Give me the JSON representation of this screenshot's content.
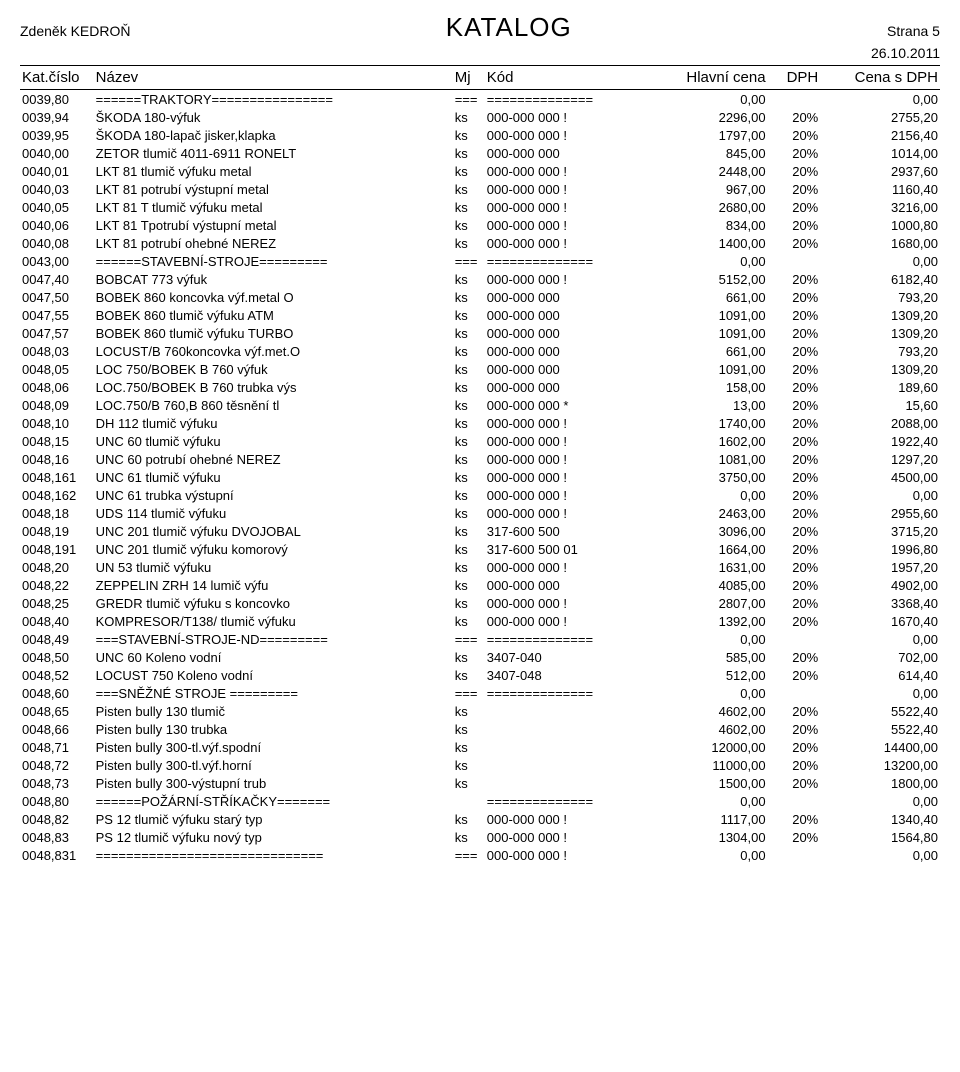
{
  "colors": {
    "text": "#000000",
    "background": "#ffffff",
    "rule": "#000000"
  },
  "fontsize": {
    "body": 13,
    "header": 15,
    "title": 26,
    "meta": 14
  },
  "meta": {
    "author": "Zdeněk KEDROŇ",
    "title": "KATALOG",
    "page": "Strana 5",
    "date": "26.10.2011"
  },
  "columns": {
    "kat": "Kat.číslo",
    "naz": "Název",
    "mj": "Mj",
    "kod": "Kód",
    "hc": "Hlavní cena",
    "dph": "DPH",
    "cdp": "Cena s DPH"
  },
  "rows": [
    {
      "kat": "0039,80",
      "naz": "======TRAKTORY================",
      "mj": "===",
      "kod": "==============",
      "hc": "0,00",
      "dph": "",
      "cdp": "0,00"
    },
    {
      "kat": "0039,94",
      "naz": "ŠKODA 180-výfuk",
      "mj": "ks",
      "kod": "000-000 000 !",
      "hc": "2296,00",
      "dph": "20%",
      "cdp": "2755,20"
    },
    {
      "kat": "0039,95",
      "naz": "ŠKODA 180-lapač jisker,klapka",
      "mj": "ks",
      "kod": "000-000 000 !",
      "hc": "1797,00",
      "dph": "20%",
      "cdp": "2156,40"
    },
    {
      "kat": "0040,00",
      "naz": "ZETOR tlumič 4011-6911  RONELT",
      "mj": "ks",
      "kod": "000-000 000",
      "hc": "845,00",
      "dph": "20%",
      "cdp": "1014,00"
    },
    {
      "kat": "0040,01",
      "naz": "LKT 81 tlumič výfuku metal",
      "mj": "ks",
      "kod": "000-000 000 !",
      "hc": "2448,00",
      "dph": "20%",
      "cdp": "2937,60"
    },
    {
      "kat": "0040,03",
      "naz": "LKT 81 potrubí výstupní metal",
      "mj": "ks",
      "kod": "000-000 000 !",
      "hc": "967,00",
      "dph": "20%",
      "cdp": "1160,40"
    },
    {
      "kat": "0040,05",
      "naz": "LKT 81 T tlumič výfuku metal",
      "mj": "ks",
      "kod": "000-000 000 !",
      "hc": "2680,00",
      "dph": "20%",
      "cdp": "3216,00"
    },
    {
      "kat": "0040,06",
      "naz": "LKT 81 Tpotrubí výstupní metal",
      "mj": "ks",
      "kod": "000-000 000 !",
      "hc": "834,00",
      "dph": "20%",
      "cdp": "1000,80"
    },
    {
      "kat": "0040,08",
      "naz": "LKT 81 potrubí ohebné   NEREZ",
      "mj": "ks",
      "kod": "000-000 000 !",
      "hc": "1400,00",
      "dph": "20%",
      "cdp": "1680,00"
    },
    {
      "kat": "0043,00",
      "naz": "======STAVEBNÍ-STROJE=========",
      "mj": "===",
      "kod": "==============",
      "hc": "0,00",
      "dph": "",
      "cdp": "0,00"
    },
    {
      "kat": "0047,40",
      "naz": "BOBCAT 773 výfuk",
      "mj": "ks",
      "kod": "000-000 000 !",
      "hc": "5152,00",
      "dph": "20%",
      "cdp": "6182,40"
    },
    {
      "kat": "0047,50",
      "naz": "BOBEK 860 koncovka výf.metal O",
      "mj": "ks",
      "kod": "000-000 000",
      "hc": "661,00",
      "dph": "20%",
      "cdp": "793,20"
    },
    {
      "kat": "0047,55",
      "naz": "BOBEK 860 tlumič výfuku    ATM",
      "mj": "ks",
      "kod": "000-000 000",
      "hc": "1091,00",
      "dph": "20%",
      "cdp": "1309,20"
    },
    {
      "kat": "0047,57",
      "naz": "BOBEK 860 tlumič výfuku  TURBO",
      "mj": "ks",
      "kod": "000-000 000",
      "hc": "1091,00",
      "dph": "20%",
      "cdp": "1309,20"
    },
    {
      "kat": "0048,03",
      "naz": "LOCUST/B 760koncovka výf.met.O",
      "mj": "ks",
      "kod": "000-000 000",
      "hc": "661,00",
      "dph": "20%",
      "cdp": "793,20"
    },
    {
      "kat": "0048,05",
      "naz": "LOC 750/BOBEK B 760 výfuk",
      "mj": "ks",
      "kod": "000-000 000",
      "hc": "1091,00",
      "dph": "20%",
      "cdp": "1309,20"
    },
    {
      "kat": "0048,06",
      "naz": "LOC.750/BOBEK B 760 trubka výs",
      "mj": "ks",
      "kod": "000-000 000",
      "hc": "158,00",
      "dph": "20%",
      "cdp": "189,60"
    },
    {
      "kat": "0048,09",
      "naz": "LOC.750/B 760,B 860 těsnění tl",
      "mj": "ks",
      "kod": "000-000 000 *",
      "hc": "13,00",
      "dph": "20%",
      "cdp": "15,60"
    },
    {
      "kat": "0048,10",
      "naz": "DH 112 tlumič výfuku",
      "mj": "ks",
      "kod": "000-000 000 !",
      "hc": "1740,00",
      "dph": "20%",
      "cdp": "2088,00"
    },
    {
      "kat": "0048,15",
      "naz": "UNC 60 tlumič výfuku",
      "mj": "ks",
      "kod": "000-000 000 !",
      "hc": "1602,00",
      "dph": "20%",
      "cdp": "1922,40"
    },
    {
      "kat": "0048,16",
      "naz": "UNC 60 potrubí ohebné   NEREZ",
      "mj": "ks",
      "kod": "000-000 000 !",
      "hc": "1081,00",
      "dph": "20%",
      "cdp": "1297,20"
    },
    {
      "kat": "0048,161",
      "naz": "UNC 61 tlumič výfuku",
      "mj": "ks",
      "kod": "000-000 000 !",
      "hc": "3750,00",
      "dph": "20%",
      "cdp": "4500,00"
    },
    {
      "kat": "0048,162",
      "naz": "UNC 61 trubka výstupní",
      "mj": "ks",
      "kod": "000-000 000 !",
      "hc": "0,00",
      "dph": "20%",
      "cdp": "0,00"
    },
    {
      "kat": "0048,18",
      "naz": "UDS 114 tlumič výfuku",
      "mj": "ks",
      "kod": "000-000 000 !",
      "hc": "2463,00",
      "dph": "20%",
      "cdp": "2955,60"
    },
    {
      "kat": "0048,19",
      "naz": "UNC 201 tlumič výfuku DVOJOBAL",
      "mj": "ks",
      "kod": "317-600 500",
      "hc": "3096,00",
      "dph": "20%",
      "cdp": "3715,20"
    },
    {
      "kat": "0048,191",
      "naz": "UNC 201 tlumič výfuku komorový",
      "mj": "ks",
      "kod": "317-600 500 01",
      "hc": "1664,00",
      "dph": "20%",
      "cdp": "1996,80"
    },
    {
      "kat": "0048,20",
      "naz": "UN  53 tlumič výfuku",
      "mj": "ks",
      "kod": "000-000 000 !",
      "hc": "1631,00",
      "dph": "20%",
      "cdp": "1957,20"
    },
    {
      "kat": "0048,22",
      "naz": "ZEPPELIN ZRH 14 lumič výfu",
      "mj": "ks",
      "kod": "000-000 000",
      "hc": "4085,00",
      "dph": "20%",
      "cdp": "4902,00"
    },
    {
      "kat": "0048,25",
      "naz": "GREDR tlumič výfuku s koncovko",
      "mj": "ks",
      "kod": "000-000 000 !",
      "hc": "2807,00",
      "dph": "20%",
      "cdp": "3368,40"
    },
    {
      "kat": "0048,40",
      "naz": "KOMPRESOR/T138/ tlumič výfuku",
      "mj": "ks",
      "kod": "000-000 000 !",
      "hc": "1392,00",
      "dph": "20%",
      "cdp": "1670,40"
    },
    {
      "kat": "0048,49",
      "naz": "===STAVEBNÍ-STROJE-ND=========",
      "mj": "===",
      "kod": "==============",
      "hc": "0,00",
      "dph": "",
      "cdp": "0,00"
    },
    {
      "kat": "0048,50",
      "naz": "UNC 60 Koleno vodní",
      "mj": "ks",
      "kod": "3407-040",
      "hc": "585,00",
      "dph": "20%",
      "cdp": "702,00"
    },
    {
      "kat": "0048,52",
      "naz": "LOCUST 750 Koleno vodní",
      "mj": "ks",
      "kod": "3407-048",
      "hc": "512,00",
      "dph": "20%",
      "cdp": "614,40"
    },
    {
      "kat": "0048,60",
      "naz": "===SNĚŽNÉ STROJE =========",
      "mj": "===",
      "kod": "==============",
      "hc": "0,00",
      "dph": "",
      "cdp": "0,00"
    },
    {
      "kat": "0048,65",
      "naz": "Pisten bully 130 tlumič",
      "mj": "ks",
      "kod": "",
      "hc": "4602,00",
      "dph": "20%",
      "cdp": "5522,40"
    },
    {
      "kat": "0048,66",
      "naz": "Pisten bully 130  trubka",
      "mj": "ks",
      "kod": "",
      "hc": "4602,00",
      "dph": "20%",
      "cdp": "5522,40"
    },
    {
      "kat": "0048,71",
      "naz": "Pisten bully 300-tl.výf.spodní",
      "mj": "ks",
      "kod": "",
      "hc": "12000,00",
      "dph": "20%",
      "cdp": "14400,00"
    },
    {
      "kat": "0048,72",
      "naz": "Pisten bully 300-tl.výf.horní",
      "mj": "ks",
      "kod": "",
      "hc": "11000,00",
      "dph": "20%",
      "cdp": "13200,00"
    },
    {
      "kat": "0048,73",
      "naz": "Pisten bully 300-výstupní trub",
      "mj": "ks",
      "kod": "",
      "hc": "1500,00",
      "dph": "20%",
      "cdp": "1800,00"
    },
    {
      "kat": "0048,80",
      "naz": "======POŽÁRNÍ-STŘÍKAČKY=======",
      "mj": "",
      "kod": "==============",
      "hc": "0,00",
      "dph": "",
      "cdp": "0,00"
    },
    {
      "kat": "0048,82",
      "naz": "PS 12 tlumič výfuku starý typ",
      "mj": "ks",
      "kod": "000-000 000 !",
      "hc": "1117,00",
      "dph": "20%",
      "cdp": "1340,40"
    },
    {
      "kat": "0048,83",
      "naz": "PS 12 tlumič výfuku nový typ",
      "mj": "ks",
      "kod": "000-000 000 !",
      "hc": "1304,00",
      "dph": "20%",
      "cdp": "1564,80"
    },
    {
      "kat": "0048,831",
      "naz": "==============================",
      "mj": "===",
      "kod": "000-000 000 !",
      "hc": "0,00",
      "dph": "",
      "cdp": "0,00"
    }
  ]
}
